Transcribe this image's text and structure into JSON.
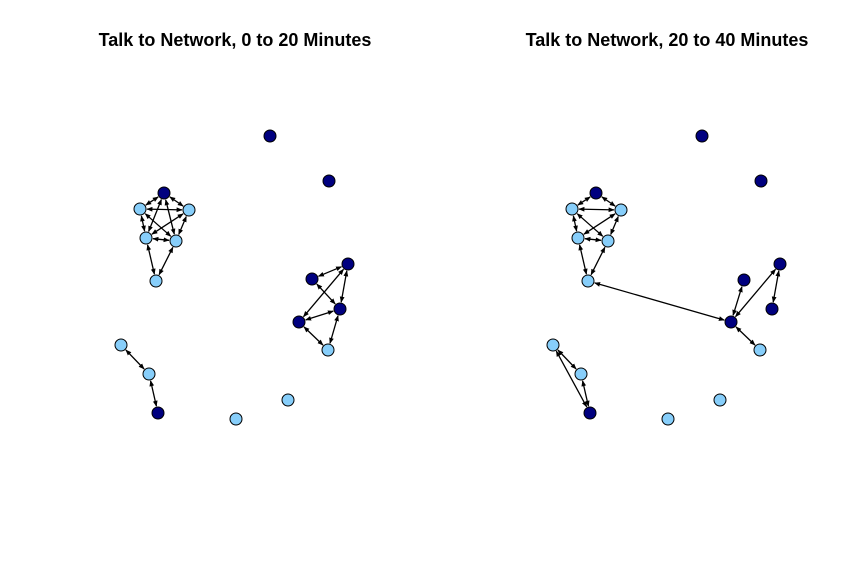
{
  "colors": {
    "dark": "#00007F",
    "light": "#87CEFA",
    "edge": "#000000"
  },
  "panels": [
    {
      "title": "Talk to Network, 0 to 20 Minutes",
      "nodes": [
        {
          "id": 1,
          "type": "dark"
        },
        {
          "id": 2,
          "type": "dark"
        },
        {
          "id": 3,
          "type": "dark"
        },
        {
          "id": 4,
          "type": "light"
        },
        {
          "id": 5,
          "type": "light"
        },
        {
          "id": 6,
          "type": "light"
        },
        {
          "id": 7,
          "type": "light"
        },
        {
          "id": 8,
          "type": "light"
        },
        {
          "id": 9,
          "type": "dark"
        },
        {
          "id": 10,
          "type": "dark"
        },
        {
          "id": 11,
          "type": "dark"
        },
        {
          "id": 12,
          "type": "dark"
        },
        {
          "id": 13,
          "type": "light"
        },
        {
          "id": 14,
          "type": "light"
        },
        {
          "id": 15,
          "type": "light"
        },
        {
          "id": 16,
          "type": "dark"
        },
        {
          "id": 17,
          "type": "light"
        },
        {
          "id": 18,
          "type": "light"
        }
      ],
      "edges": [
        [
          3,
          4
        ],
        [
          3,
          5
        ],
        [
          3,
          6
        ],
        [
          3,
          7
        ],
        [
          4,
          5
        ],
        [
          4,
          6
        ],
        [
          4,
          7
        ],
        [
          5,
          6
        ],
        [
          5,
          7
        ],
        [
          6,
          7
        ],
        [
          6,
          8
        ],
        [
          7,
          8
        ],
        [
          9,
          10
        ],
        [
          9,
          11
        ],
        [
          9,
          12
        ],
        [
          10,
          11
        ],
        [
          11,
          12
        ],
        [
          11,
          13
        ],
        [
          12,
          13
        ],
        [
          14,
          15
        ],
        [
          15,
          16
        ]
      ]
    },
    {
      "title": "Talk to Network, 20 to 40 Minutes",
      "nodes": [
        {
          "id": 1,
          "type": "dark"
        },
        {
          "id": 2,
          "type": "dark"
        },
        {
          "id": 3,
          "type": "dark"
        },
        {
          "id": 4,
          "type": "light"
        },
        {
          "id": 5,
          "type": "light"
        },
        {
          "id": 6,
          "type": "light"
        },
        {
          "id": 7,
          "type": "light"
        },
        {
          "id": 8,
          "type": "light"
        },
        {
          "id": 9,
          "type": "dark"
        },
        {
          "id": 10,
          "type": "dark"
        },
        {
          "id": 11,
          "type": "dark"
        },
        {
          "id": 12,
          "type": "dark"
        },
        {
          "id": 13,
          "type": "light"
        },
        {
          "id": 14,
          "type": "light"
        },
        {
          "id": 15,
          "type": "light"
        },
        {
          "id": 16,
          "type": "dark"
        },
        {
          "id": 17,
          "type": "light"
        },
        {
          "id": 18,
          "type": "light"
        }
      ],
      "edges": [
        [
          3,
          4
        ],
        [
          3,
          5
        ],
        [
          4,
          5
        ],
        [
          4,
          6
        ],
        [
          4,
          7
        ],
        [
          5,
          6
        ],
        [
          5,
          7
        ],
        [
          6,
          7
        ],
        [
          6,
          8
        ],
        [
          7,
          8
        ],
        [
          12,
          8
        ],
        [
          12,
          9
        ],
        [
          12,
          10
        ],
        [
          10,
          11
        ],
        [
          12,
          13
        ],
        [
          14,
          15
        ],
        [
          15,
          16
        ],
        [
          14,
          16
        ]
      ]
    }
  ]
}
